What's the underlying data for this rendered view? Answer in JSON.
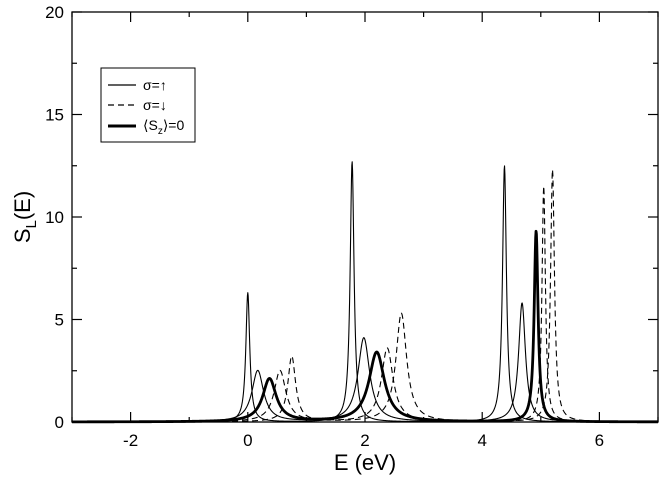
{
  "chart_data": {
    "type": "line",
    "xlabel": "E (eV)",
    "ylabel": "S_L(E)",
    "xlim": [
      -3,
      7
    ],
    "ylim": [
      0,
      20
    ],
    "x_ticks": [
      -2,
      0,
      2,
      4,
      6
    ],
    "y_ticks": [
      0,
      5,
      10,
      15,
      20
    ],
    "x_tick_labels": [
      "-2",
      "0",
      "2",
      "4",
      "6"
    ],
    "y_tick_labels": [
      "0",
      "5",
      "10",
      "15",
      "20"
    ],
    "grid": false,
    "legend_position": "top-left",
    "series": [
      {
        "name": "σ=↑",
        "style": "solid-thin",
        "color": "#000000",
        "curves": [
          {
            "peaks": [
              {
                "x": 0.0,
                "h": 6.3,
                "w": 0.04
              },
              {
                "x": 1.78,
                "h": 12.7,
                "w": 0.04
              },
              {
                "x": 4.38,
                "h": 12.5,
                "w": 0.04
              }
            ]
          },
          {
            "peaks": [
              {
                "x": 0.17,
                "h": 2.5,
                "w": 0.12
              },
              {
                "x": 1.98,
                "h": 4.1,
                "w": 0.12
              },
              {
                "x": 4.68,
                "h": 5.8,
                "w": 0.07
              }
            ]
          }
        ]
      },
      {
        "name": "σ=↓",
        "style": "dashed",
        "color": "#000000",
        "curves": [
          {
            "peaks": [
              {
                "x": 0.55,
                "h": 2.5,
                "w": 0.12
              },
              {
                "x": 2.38,
                "h": 3.6,
                "w": 0.12
              },
              {
                "x": 5.05,
                "h": 11.5,
                "w": 0.035
              }
            ]
          },
          {
            "peaks": [
              {
                "x": 0.75,
                "h": 3.2,
                "w": 0.08
              },
              {
                "x": 2.62,
                "h": 5.3,
                "w": 0.11
              },
              {
                "x": 5.2,
                "h": 12.3,
                "w": 0.04
              }
            ]
          }
        ]
      },
      {
        "name": "⟨S_z⟩=0",
        "style": "solid-thick",
        "color": "#000000",
        "curves": [
          {
            "peaks": [
              {
                "x": 0.37,
                "h": 2.1,
                "w": 0.14
              },
              {
                "x": 2.2,
                "h": 3.4,
                "w": 0.16
              },
              {
                "x": 4.92,
                "h": 9.3,
                "w": 0.04
              }
            ]
          }
        ]
      }
    ]
  },
  "legend": {
    "items": [
      {
        "label_main": "σ=↑",
        "sub": "",
        "tail": ""
      },
      {
        "label_main": "σ=↓",
        "sub": "",
        "tail": ""
      },
      {
        "label_main": "⟨S",
        "sub": "z",
        "tail": "⟩=0"
      }
    ]
  },
  "axes_titles": {
    "x": "E (eV)",
    "y_main": "S",
    "y_sub": "L",
    "y_tail": "(E)"
  }
}
